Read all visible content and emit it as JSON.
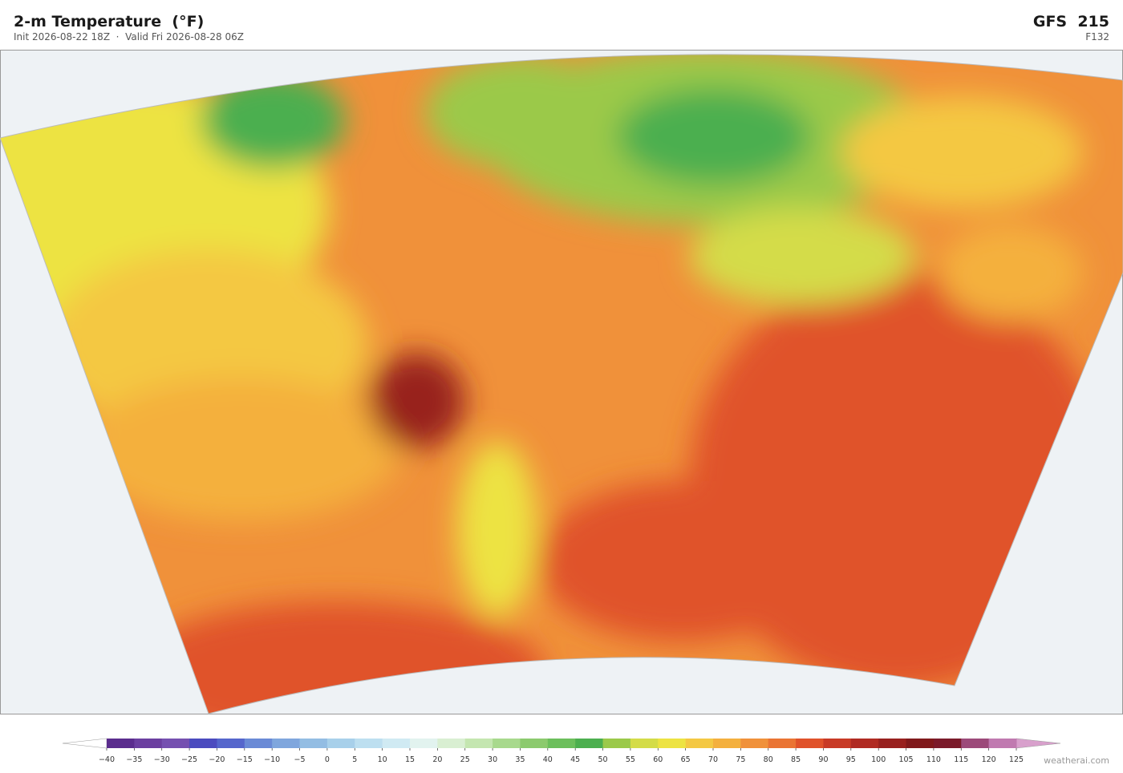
{
  "header": {
    "title": "2-m Temperature  (°F)",
    "subtitle": "Init 2026-08-22 18Z  ·  Valid Fri 2026-08-28 06Z",
    "model": "GFS  215",
    "forecast_hour": "F132"
  },
  "colorbar": {
    "ticks": [
      {
        "value": -40,
        "label": "−40"
      },
      {
        "value": -35,
        "label": "−35"
      },
      {
        "value": -30,
        "label": "−30"
      },
      {
        "value": -25,
        "label": "−25"
      },
      {
        "value": -20,
        "label": "−20"
      },
      {
        "value": -15,
        "label": "−15"
      },
      {
        "value": -10,
        "label": "−10"
      },
      {
        "value": -5,
        "label": "−5"
      },
      0,
      5,
      10,
      15,
      20,
      25,
      30,
      35,
      40,
      45,
      50,
      55,
      60,
      65,
      70,
      75,
      80,
      85,
      90,
      95,
      100,
      105,
      110,
      115,
      120,
      125
    ],
    "colors": [
      "#5b2d8e",
      "#6b3fa0",
      "#7550b0",
      "#4b4bbf",
      "#5566cc",
      "#6a8ad6",
      "#7fa6dd",
      "#93bde3",
      "#a8d0ea",
      "#bddff0",
      "#d0eaf3",
      "#e2f3ef",
      "#d9efd2",
      "#c4e6b0",
      "#a8d98d",
      "#8cca6e",
      "#6cbf5c",
      "#4caf4f",
      "#9bc94a",
      "#d4dc48",
      "#ede342",
      "#f4c843",
      "#f4b03e",
      "#f0913a",
      "#ea7433",
      "#e0522a",
      "#c83a26",
      "#b02a22",
      "#98201e",
      "#80191b",
      "#7b1a2a",
      "#9c4a7a",
      "#c07ab0"
    ],
    "under_color": "#ffffff",
    "over_color": "#d8a0cc"
  },
  "watermark": "weatherai.com"
}
